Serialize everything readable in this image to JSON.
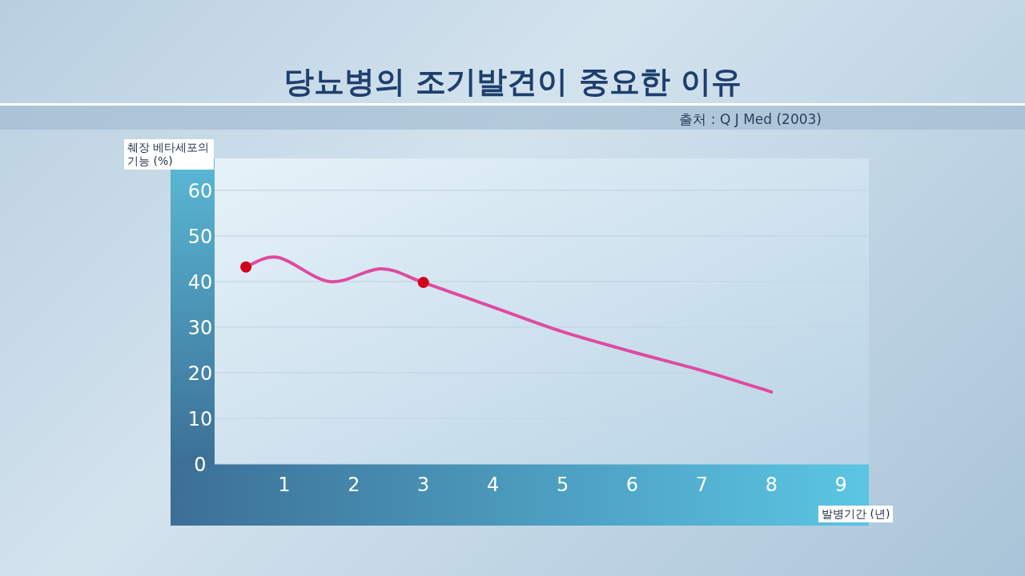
{
  "chart_data": {
    "type": "line",
    "title": "당뇨병의 조기발견이 중요한 이유",
    "annotations": [
      "출처 : Q J Med (2003)"
    ],
    "xlabel": "발병기간 (년)",
    "ylabel": "췌장 베타세포의 기능 (%)",
    "xlim": [
      0,
      9.4
    ],
    "xticks": [
      1,
      2,
      3,
      4,
      5,
      6,
      7,
      8,
      9
    ],
    "ylim": [
      0,
      67
    ],
    "yticks": [
      0,
      10,
      20,
      30,
      40,
      50,
      60
    ],
    "grid": "y",
    "series": [
      {
        "color": "#e04aa0",
        "x": [
          0.45,
          0.91,
          1.66,
          2.39,
          3,
          4,
          5,
          6,
          7,
          8
        ],
        "values": [
          43.2,
          45.3,
          40,
          42.8,
          39.8,
          34.4,
          29,
          24.6,
          20.5,
          15.8
        ]
      },
      {
        "type": "scatter",
        "marker": "circle",
        "color": "#d0021b",
        "x": [
          0.45,
          3
        ],
        "values": [
          43.2,
          39.8
        ]
      }
    ]
  }
}
